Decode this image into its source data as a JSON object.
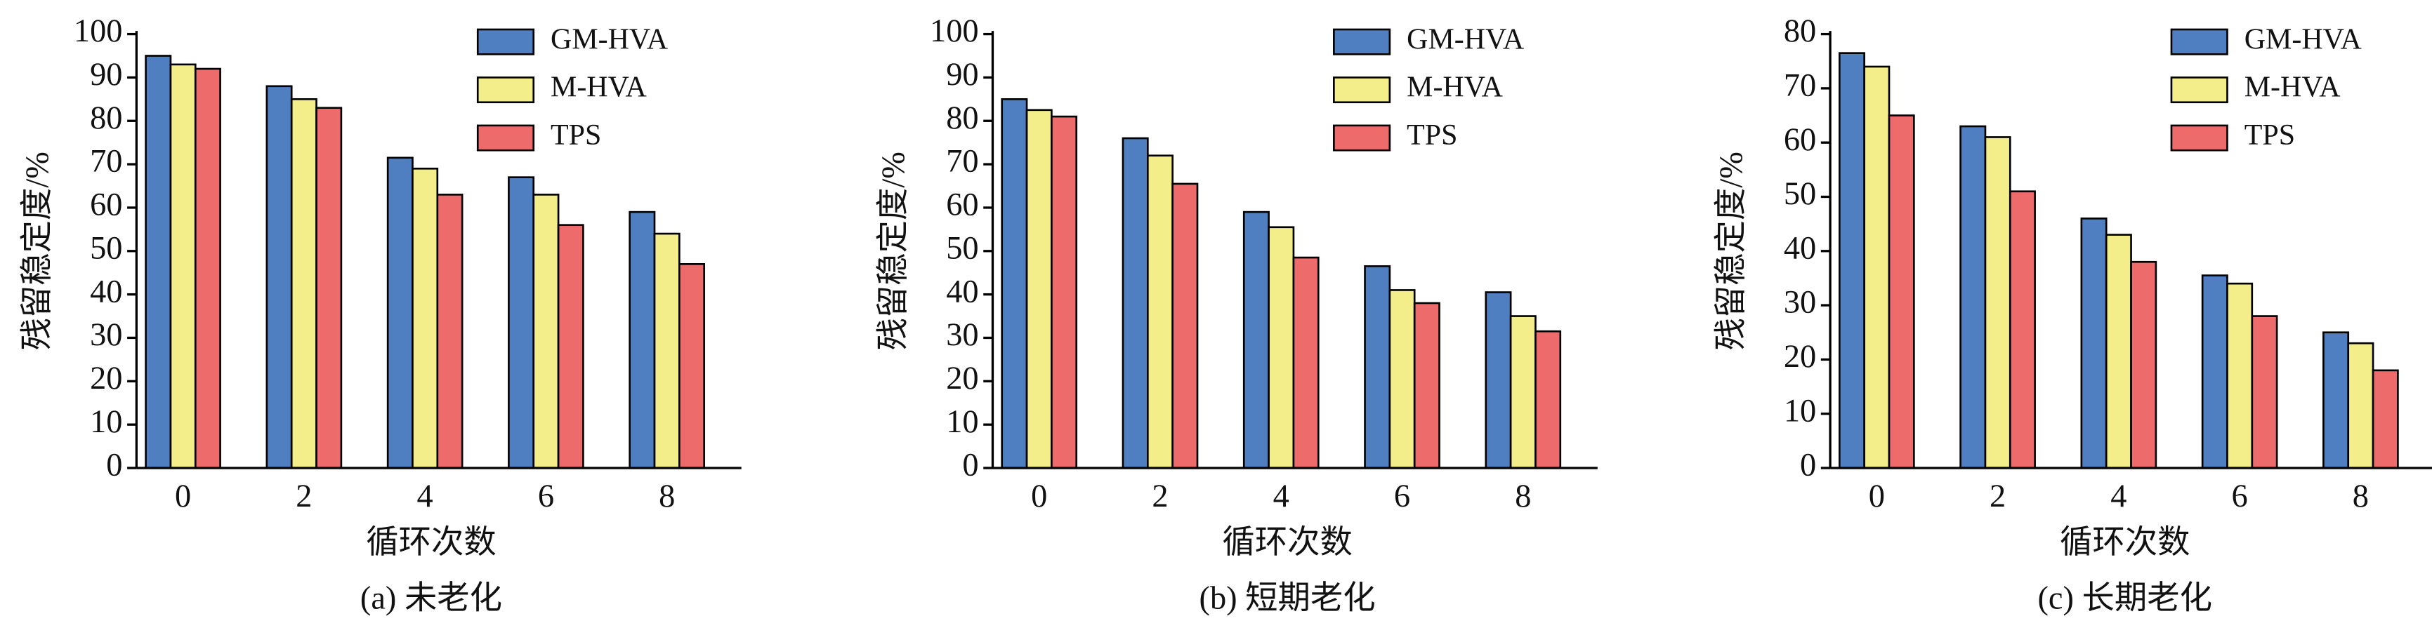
{
  "chart_data": [
    {
      "type": "bar",
      "title": "(a) 未老化",
      "xlabel": "循环次数",
      "ylabel": "残留稳定度/%",
      "categories": [
        "0",
        "2",
        "4",
        "6",
        "8"
      ],
      "series": [
        {
          "name": "GM-HVA",
          "color": "#4f7fc0",
          "values": [
            95,
            88,
            71.5,
            67,
            59
          ]
        },
        {
          "name": "M-HVA",
          "color": "#f3ee8a",
          "values": [
            93,
            85,
            69,
            63,
            54
          ]
        },
        {
          "name": "TPS",
          "color": "#ee6b6b",
          "values": [
            92,
            83,
            63,
            56,
            47
          ]
        }
      ],
      "ylim": [
        0,
        100
      ],
      "yticks": [
        0,
        10,
        20,
        30,
        40,
        50,
        60,
        70,
        80,
        90,
        100
      ],
      "legend": "upper right"
    },
    {
      "type": "bar",
      "title": "(b) 短期老化",
      "xlabel": "循环次数",
      "ylabel": "残留稳定度/%",
      "categories": [
        "0",
        "2",
        "4",
        "6",
        "8"
      ],
      "series": [
        {
          "name": "GM-HVA",
          "color": "#4f7fc0",
          "values": [
            85,
            76,
            59,
            46.5,
            40.5
          ]
        },
        {
          "name": "M-HVA",
          "color": "#f3ee8a",
          "values": [
            82.5,
            72,
            55.5,
            41,
            35
          ]
        },
        {
          "name": "TPS",
          "color": "#ee6b6b",
          "values": [
            81,
            65.5,
            48.5,
            38,
            31.5
          ]
        }
      ],
      "ylim": [
        0,
        100
      ],
      "yticks": [
        0,
        10,
        20,
        30,
        40,
        50,
        60,
        70,
        80,
        90,
        100
      ],
      "legend": "upper right"
    },
    {
      "type": "bar",
      "title": "(c) 长期老化",
      "xlabel": "循环次数",
      "ylabel": "残留稳定度/%",
      "categories": [
        "0",
        "2",
        "4",
        "6",
        "8"
      ],
      "series": [
        {
          "name": "GM-HVA",
          "color": "#4f7fc0",
          "values": [
            76.5,
            63,
            46,
            35.5,
            25
          ]
        },
        {
          "name": "M-HVA",
          "color": "#f3ee8a",
          "values": [
            74,
            61,
            43,
            34,
            23
          ]
        },
        {
          "name": "TPS",
          "color": "#ee6b6b",
          "values": [
            65,
            51,
            38,
            28,
            18
          ]
        }
      ],
      "ylim": [
        0,
        80
      ],
      "yticks": [
        0,
        10,
        20,
        30,
        40,
        50,
        60,
        70,
        80
      ],
      "legend": "upper right"
    }
  ]
}
